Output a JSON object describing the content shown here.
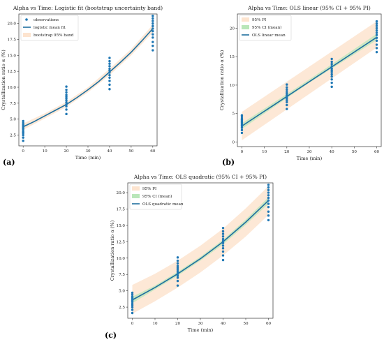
{
  "colors": {
    "points": "#1f77b4",
    "fit_line": "#1f6f9f",
    "pi_band": "#fde4cf",
    "ci_band": "#b9e6b9",
    "axis": "#333333"
  },
  "chart_data": [
    {
      "type": "scatter",
      "panel_label": "(a)",
      "title": "Alpha vs Time: Logistic fit (bootstrap uncertainty band)",
      "xlabel": "Time (min)",
      "ylabel": "Crystallization ratio α (%)",
      "xlim": [
        -2,
        62
      ],
      "ylim": [
        0.8,
        21.5
      ],
      "xticks": [
        0,
        10,
        20,
        30,
        40,
        50,
        60
      ],
      "yticks": [
        2.5,
        5.0,
        7.5,
        10.0,
        12.5,
        15.0,
        17.5,
        20.0
      ],
      "legend_position": "upper-left",
      "grid": false,
      "series": [
        {
          "name": "observations",
          "kind": "scatter",
          "x": [
            0,
            0,
            0,
            0,
            0,
            0,
            0,
            0,
            0,
            0,
            0,
            0,
            20,
            20,
            20,
            20,
            20,
            20,
            20,
            20,
            20,
            20,
            20,
            20,
            40,
            40,
            40,
            40,
            40,
            40,
            40,
            40,
            40,
            40,
            40,
            40,
            60,
            60,
            60,
            60,
            60,
            60,
            60,
            60,
            60,
            60,
            60,
            60
          ],
          "y": [
            1.6,
            2.1,
            2.5,
            2.8,
            3.0,
            3.3,
            3.5,
            3.7,
            3.9,
            4.1,
            4.4,
            4.7,
            5.8,
            6.5,
            7.0,
            7.3,
            7.6,
            7.9,
            8.2,
            8.5,
            8.8,
            9.2,
            9.6,
            10.1,
            9.7,
            10.4,
            11.0,
            11.5,
            11.9,
            12.3,
            12.6,
            12.9,
            13.3,
            13.7,
            14.1,
            14.6,
            15.8,
            16.5,
            17.1,
            17.8,
            18.3,
            18.8,
            19.2,
            19.6,
            20.0,
            20.4,
            20.8,
            21.2
          ]
        },
        {
          "name": "logistic mean fit",
          "kind": "line",
          "x": [
            0,
            5,
            10,
            15,
            20,
            25,
            30,
            35,
            40,
            45,
            50,
            55,
            60
          ],
          "y": [
            3.8,
            4.6,
            5.5,
            6.4,
            7.3,
            8.4,
            9.6,
            10.9,
            12.4,
            13.9,
            15.5,
            17.3,
            19.2
          ]
        },
        {
          "name": "bootstrap 95% band",
          "kind": "band",
          "x": [
            0,
            10,
            20,
            30,
            40,
            50,
            60
          ],
          "lower": [
            3.3,
            5.1,
            6.9,
            9.2,
            11.9,
            15.0,
            18.6
          ],
          "upper": [
            4.3,
            5.9,
            7.7,
            10.0,
            12.9,
            16.0,
            19.8
          ]
        }
      ]
    },
    {
      "type": "scatter",
      "panel_label": "(b)",
      "title": "Alpha vs Time: OLS linear (95% CI + 95% PI)",
      "xlabel": "Time (min)",
      "ylabel": "Crystallization ratio α (%)",
      "xlim": [
        -2,
        62
      ],
      "ylim": [
        -0.8,
        22.5
      ],
      "xticks": [
        0,
        10,
        20,
        30,
        40,
        50,
        60
      ],
      "yticks": [
        0,
        5,
        10,
        15,
        20
      ],
      "legend_position": "upper-left",
      "grid": false,
      "series": [
        {
          "name": "95% PI",
          "kind": "band",
          "x": [
            0,
            60
          ],
          "lower": [
            0.3,
            16.6
          ],
          "upper": [
            5.3,
            21.2
          ]
        },
        {
          "name": "95% CI (mean)",
          "kind": "band",
          "x": [
            0,
            30,
            60
          ],
          "lower": [
            2.3,
            10.4,
            17.9
          ],
          "upper": [
            3.3,
            11.0,
            19.0
          ]
        },
        {
          "name": "OLS linear mean",
          "kind": "line",
          "x": [
            0,
            60
          ],
          "y": [
            2.8,
            18.4
          ]
        },
        {
          "name": "observations",
          "kind": "scatter",
          "x": [
            0,
            0,
            0,
            0,
            0,
            0,
            0,
            0,
            0,
            0,
            0,
            0,
            20,
            20,
            20,
            20,
            20,
            20,
            20,
            20,
            20,
            20,
            20,
            20,
            40,
            40,
            40,
            40,
            40,
            40,
            40,
            40,
            40,
            40,
            40,
            40,
            60,
            60,
            60,
            60,
            60,
            60,
            60,
            60,
            60,
            60,
            60,
            60
          ],
          "y": [
            1.6,
            2.1,
            2.5,
            2.8,
            3.0,
            3.3,
            3.5,
            3.7,
            3.9,
            4.1,
            4.4,
            4.7,
            5.8,
            6.5,
            7.0,
            7.3,
            7.6,
            7.9,
            8.2,
            8.5,
            8.8,
            9.2,
            9.6,
            10.1,
            9.7,
            10.4,
            11.0,
            11.5,
            11.9,
            12.3,
            12.6,
            12.9,
            13.3,
            13.7,
            14.1,
            14.6,
            15.8,
            16.5,
            17.1,
            17.8,
            18.3,
            18.8,
            19.2,
            19.6,
            20.0,
            20.4,
            20.8,
            21.2
          ]
        }
      ]
    },
    {
      "type": "scatter",
      "panel_label": "(c)",
      "title": "Alpha vs Time: OLS quadratic (95% CI + 95% PI)",
      "xlabel": "Time (min)",
      "ylabel": "Crystallization ratio α (%)",
      "xlim": [
        -2,
        62
      ],
      "ylim": [
        0.8,
        21.5
      ],
      "xticks": [
        0,
        10,
        20,
        30,
        40,
        50,
        60
      ],
      "yticks": [
        2.5,
        5.0,
        7.5,
        10.0,
        12.5,
        15.0,
        17.5,
        20.0
      ],
      "legend_position": "upper-left",
      "grid": false,
      "series": [
        {
          "name": "95% PI",
          "kind": "band",
          "x": [
            0,
            10,
            20,
            30,
            40,
            50,
            60
          ],
          "lower": [
            1.5,
            3.4,
            5.5,
            7.8,
            10.4,
            13.3,
            16.6
          ],
          "upper": [
            5.9,
            7.6,
            9.6,
            11.9,
            14.5,
            17.6,
            21.0
          ]
        },
        {
          "name": "95% CI (mean)",
          "kind": "band",
          "x": [
            0,
            10,
            20,
            30,
            40,
            50,
            60
          ],
          "lower": [
            3.1,
            5.2,
            7.3,
            9.6,
            12.1,
            15.1,
            18.3
          ],
          "upper": [
            4.1,
            5.8,
            7.9,
            10.2,
            12.8,
            15.9,
            19.3
          ]
        },
        {
          "name": "OLS quadratic mean",
          "kind": "line",
          "x": [
            0,
            10,
            20,
            30,
            40,
            50,
            60
          ],
          "y": [
            3.6,
            5.5,
            7.6,
            9.9,
            12.5,
            15.5,
            18.8
          ]
        },
        {
          "name": "observations",
          "kind": "scatter",
          "x": [
            0,
            0,
            0,
            0,
            0,
            0,
            0,
            0,
            0,
            0,
            0,
            0,
            20,
            20,
            20,
            20,
            20,
            20,
            20,
            20,
            20,
            20,
            20,
            20,
            40,
            40,
            40,
            40,
            40,
            40,
            40,
            40,
            40,
            40,
            40,
            40,
            60,
            60,
            60,
            60,
            60,
            60,
            60,
            60,
            60,
            60,
            60,
            60
          ],
          "y": [
            1.6,
            2.1,
            2.5,
            2.8,
            3.0,
            3.3,
            3.5,
            3.7,
            3.9,
            4.1,
            4.4,
            4.7,
            5.8,
            6.5,
            7.0,
            7.3,
            7.6,
            7.9,
            8.2,
            8.5,
            8.8,
            9.2,
            9.6,
            10.1,
            9.7,
            10.4,
            11.0,
            11.5,
            11.9,
            12.3,
            12.6,
            12.9,
            13.3,
            13.7,
            14.1,
            14.6,
            15.8,
            16.5,
            17.1,
            17.8,
            18.3,
            18.8,
            19.2,
            19.6,
            20.0,
            20.4,
            20.8,
            21.2
          ]
        }
      ]
    }
  ]
}
